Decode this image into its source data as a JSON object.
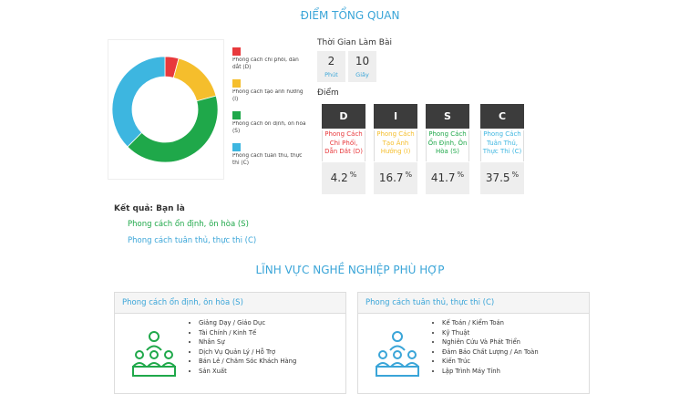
{
  "header": {
    "title": "ĐIỂM TỔNG QUAN"
  },
  "chart_data": {
    "type": "pie",
    "donut": true,
    "categories": [
      "Phong cách chi phối, dẫn dắt (D)",
      "Phong cách tạo ảnh hưởng (I)",
      "Phong cách ổn định, ôn hòa (S)",
      "Phong cách tuân thủ, thực thi (C)"
    ],
    "values": [
      4.2,
      16.7,
      41.7,
      37.5
    ],
    "colors": [
      "#e8393c",
      "#f5be2c",
      "#1fa84a",
      "#3db6e0"
    ]
  },
  "time": {
    "label": "Thời Gian Làm Bài",
    "items": [
      {
        "value": "2",
        "unit": "Phút"
      },
      {
        "value": "10",
        "unit": "Giây"
      }
    ]
  },
  "score": {
    "label": "Điểm",
    "unit": "%",
    "columns": [
      {
        "letter": "D",
        "desc": "Phong Cách Chi Phối, Dẫn Dắt (D)"
      },
      {
        "letter": "I",
        "desc": "Phong Cách Tạo Ảnh Hưởng (I)"
      },
      {
        "letter": "S",
        "desc": "Phong Cách Ổn Định, Ôn Hòa (S)"
      },
      {
        "letter": "C",
        "desc": "Phong Cách Tuân Thủ, Thực Thi (C)"
      }
    ]
  },
  "result": {
    "label": "Kết quả: Bạn là",
    "items": [
      "Phong cách ổn định, ôn hòa (S)",
      "Phong cách tuân thủ, thực thi (C)"
    ]
  },
  "careers": {
    "title": "LĨNH VỰC NGHỀ NGHIỆP PHÙ HỢP",
    "cards": [
      {
        "heading": "Phong cách ổn định, ôn hòa (S)",
        "items": [
          "Giảng Dạy / Giáo Dục",
          "Tài Chính / Kinh Tế",
          "Nhân Sự",
          "Dịch Vụ Quản Lý / Hỗ Trợ",
          "Bán Lẻ / Chăm Sóc Khách Hàng",
          "Sản Xuất"
        ]
      },
      {
        "heading": "Phong cách tuân thủ, thực thi (C)",
        "items": [
          "Kế Toán / Kiểm Toán",
          "Kỹ Thuật",
          "Nghiên Cứu Và Phát Triển",
          "Đảm Bảo Chất Lượng / An Toàn",
          "Kiến Trúc",
          "Lập Trình Máy Tính"
        ]
      }
    ]
  }
}
